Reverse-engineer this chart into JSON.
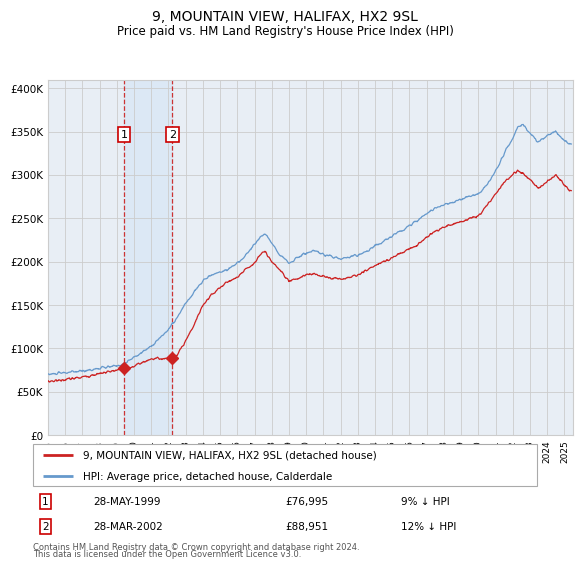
{
  "title": "9, MOUNTAIN VIEW, HALIFAX, HX2 9SL",
  "subtitle": "Price paid vs. HM Land Registry's House Price Index (HPI)",
  "x_start": 1995.0,
  "x_end": 2025.5,
  "y_min": 0,
  "y_max": 410000,
  "y_ticks": [
    0,
    50000,
    100000,
    150000,
    200000,
    250000,
    300000,
    350000,
    400000
  ],
  "y_tick_labels": [
    "£0",
    "£50K",
    "£100K",
    "£150K",
    "£200K",
    "£250K",
    "£300K",
    "£350K",
    "£400K"
  ],
  "sale1_x": 1999.41,
  "sale1_y": 76995,
  "sale2_x": 2002.23,
  "sale2_y": 88951,
  "sale1_date": "28-MAY-1999",
  "sale1_price": "£76,995",
  "sale1_hpi": "9% ↓ HPI",
  "sale2_date": "28-MAR-2002",
  "sale2_price": "£88,951",
  "sale2_hpi": "12% ↓ HPI",
  "shade_color": "#dce8f5",
  "vline_color": "#cc3333",
  "grid_color": "#cccccc",
  "bg_color": "#ffffff",
  "plot_bg_color": "#e8eef5",
  "red_line_color": "#cc2222",
  "blue_line_color": "#6699cc",
  "legend_label_red": "9, MOUNTAIN VIEW, HALIFAX, HX2 9SL (detached house)",
  "legend_label_blue": "HPI: Average price, detached house, Calderdale",
  "footnote_line1": "Contains HM Land Registry data © Crown copyright and database right 2024.",
  "footnote_line2": "This data is licensed under the Open Government Licence v3.0.",
  "x_tick_years": [
    1995,
    1996,
    1997,
    1998,
    1999,
    2000,
    2001,
    2002,
    2003,
    2004,
    2005,
    2006,
    2007,
    2008,
    2009,
    2010,
    2011,
    2012,
    2013,
    2014,
    2015,
    2016,
    2017,
    2018,
    2019,
    2020,
    2021,
    2022,
    2023,
    2024,
    2025
  ]
}
